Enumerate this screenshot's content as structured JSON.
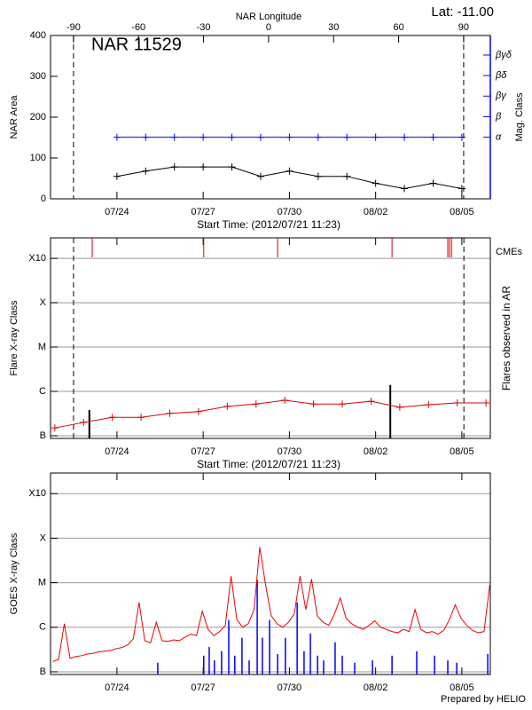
{
  "chart_data": [
    {
      "type": "line",
      "title": "NAR 11529",
      "subtitle": "Lat: -11.00",
      "x_label": "Start Time: (2012/07/21 11:23)",
      "y_label": "NAR Area",
      "y2_label": "Mag. Class",
      "x2_label": "NAR Longitude",
      "xlim": [
        0.22,
        15.52
      ],
      "xticks": [
        {
          "value": 2.53,
          "label": "07/24"
        },
        {
          "value": 5.53,
          "label": "07/27"
        },
        {
          "value": 8.53,
          "label": "07/30"
        },
        {
          "value": 11.53,
          "label": "08/02"
        },
        {
          "value": 14.53,
          "label": "08/05"
        }
      ],
      "x2lim": [
        -100.6,
        102.3
      ],
      "x2ticks": [
        -90,
        -60,
        -30,
        0,
        30,
        60,
        90
      ],
      "limb_lines": [
        -90,
        90
      ],
      "limb_axis": "x2",
      "ylim": [
        0,
        400
      ],
      "yticks": [
        0,
        100,
        200,
        300,
        400
      ],
      "y2lim": [
        0,
        7.95
      ],
      "y2ticks": [
        {
          "value": 3,
          "label": "α"
        },
        {
          "value": 4,
          "label": "β"
        },
        {
          "value": 5,
          "label": "βγ"
        },
        {
          "value": 6,
          "label": "βδ"
        },
        {
          "value": 7,
          "label": "βγδ"
        }
      ],
      "markers": "+",
      "x": [
        2.53,
        3.53,
        4.53,
        5.53,
        6.53,
        7.53,
        8.53,
        9.53,
        10.53,
        11.53,
        12.53,
        13.53,
        14.53
      ],
      "series": [
        {
          "color": "#000000",
          "values": [
            55,
            68,
            78,
            78,
            78,
            55,
            68,
            55,
            55,
            38,
            25,
            38,
            25
          ]
        },
        {
          "color": "#0000ff",
          "axis": "y2",
          "values": [
            3,
            3,
            3,
            3,
            3,
            3,
            3,
            3,
            3,
            3,
            3,
            3,
            3
          ]
        }
      ]
    },
    {
      "type": "line",
      "x_label": "Start Time: (2012/07/21 11:23)",
      "y_label": "Flare X-ray Class",
      "y2_label": "Flares observed in AR",
      "log_y": true,
      "grid": true,
      "markers": "+",
      "xlim": [
        0.22,
        15.52
      ],
      "xticks": [
        {
          "value": 2.53,
          "label": "07/24"
        },
        {
          "value": 5.53,
          "label": "07/27"
        },
        {
          "value": 8.53,
          "label": "07/30"
        },
        {
          "value": 11.53,
          "label": "08/02"
        },
        {
          "value": 14.53,
          "label": "08/05"
        }
      ],
      "ylim": [
        8.7e-08,
        0.0029
      ],
      "yticks": [
        {
          "value": 1e-07,
          "label": "B"
        },
        {
          "value": 1e-06,
          "label": "C"
        },
        {
          "value": 1e-05,
          "label": "M"
        },
        {
          "value": 0.0001,
          "label": "X"
        },
        {
          "value": 0.001,
          "label": "X10"
        }
      ],
      "limb_lines": [
        1.02,
        14.6
      ],
      "limb_axis": "x",
      "x": [
        0.37,
        1.37,
        2.37,
        3.37,
        4.37,
        5.37,
        6.37,
        7.37,
        8.37,
        9.37,
        10.37,
        11.37,
        12.37,
        13.37,
        14.37,
        15.37
      ],
      "series": [
        {
          "color": "#dd0000",
          "values": [
            1.5e-07,
            2e-07,
            2.6e-07,
            2.6e-07,
            3.2e-07,
            3.5e-07,
            4.6e-07,
            5.2e-07,
            6.3e-07,
            5.2e-07,
            5.2e-07,
            6e-07,
            4.4e-07,
            5e-07,
            5.5e-07,
            5.5e-07
          ]
        }
      ],
      "flares": {
        "color": "#000000",
        "x": [
          1.57,
          12.04
        ],
        "values": [
          3.8e-07,
          1.4e-06
        ]
      },
      "cmes": {
        "name": "CMEs",
        "color": "#dd0000",
        "x": [
          1.67,
          5.55,
          8.12,
          12.1,
          14.04,
          14.1,
          14.17
        ]
      }
    },
    {
      "type": "line",
      "y_label": "GOES X-ray Class",
      "footer": "Prepared by HELIO",
      "log_y": true,
      "grid": true,
      "xlim": [
        0.22,
        15.52
      ],
      "xticks": [
        {
          "value": 2.53,
          "label": "07/24"
        },
        {
          "value": 5.53,
          "label": "07/27"
        },
        {
          "value": 8.53,
          "label": "07/30"
        },
        {
          "value": 11.53,
          "label": "08/02"
        },
        {
          "value": 14.53,
          "label": "08/05"
        }
      ],
      "ylim": [
        8.7e-08,
        0.0029
      ],
      "yticks": [
        {
          "value": 1e-07,
          "label": "B"
        },
        {
          "value": 1e-06,
          "label": "C"
        },
        {
          "value": 1e-05,
          "label": "M"
        },
        {
          "value": 0.0001,
          "label": "X"
        },
        {
          "value": 0.001,
          "label": "X10"
        }
      ],
      "x": [
        0.3,
        0.5,
        0.7,
        0.9,
        1.1,
        1.3,
        1.5,
        1.7,
        1.9,
        2.1,
        2.3,
        2.5,
        2.7,
        2.9,
        3.1,
        3.3,
        3.5,
        3.7,
        3.9,
        4.1,
        4.3,
        4.5,
        4.7,
        4.9,
        5.1,
        5.3,
        5.5,
        5.7,
        5.9,
        6.1,
        6.3,
        6.5,
        6.7,
        6.9,
        7.1,
        7.3,
        7.5,
        7.7,
        7.9,
        8.1,
        8.3,
        8.5,
        8.7,
        8.9,
        9.1,
        9.3,
        9.5,
        9.7,
        9.9,
        10.1,
        10.3,
        10.5,
        10.7,
        10.9,
        11.1,
        11.3,
        11.5,
        11.7,
        11.9,
        12.1,
        12.3,
        12.5,
        12.7,
        12.9,
        13.1,
        13.3,
        13.5,
        13.7,
        13.9,
        14.1,
        14.3,
        14.5,
        14.7,
        14.9,
        15.1,
        15.3,
        15.5
      ],
      "series": [
        {
          "color": "#ee0000",
          "values": [
            1.7e-07,
            1.9e-07,
            1.2e-06,
            2e-07,
            2.2e-07,
            2.3e-07,
            2.5e-07,
            2.6e-07,
            2.8e-07,
            2.9e-07,
            3e-07,
            3.3e-07,
            3.5e-07,
            4e-07,
            5.5e-07,
            3.6e-06,
            5e-07,
            4.5e-07,
            1.3e-06,
            5e-07,
            4.8e-07,
            5.2e-07,
            5e-07,
            6e-07,
            7e-07,
            6.5e-07,
            2.3e-06,
            9e-07,
            6.5e-07,
            8e-07,
            1.1e-06,
            1.4e-05,
            1.5e-06,
            1e-06,
            1.2e-06,
            2.5e-06,
            6.3e-05,
            9e-06,
            1.8e-06,
            1.2e-06,
            1e-06,
            1.3e-06,
            2e-06,
            1.4e-05,
            2.5e-06,
            1.2e-05,
            1.8e-06,
            1.3e-06,
            1.1e-06,
            2e-06,
            4.5e-06,
            1.6e-06,
            1.2e-06,
            1e-06,
            9e-07,
            1.1e-06,
            1.4e-06,
            1e-06,
            9e-07,
            8e-07,
            7.5e-07,
            9e-07,
            8e-07,
            2.5e-06,
            9e-07,
            7.5e-07,
            8e-07,
            7e-07,
            8.5e-07,
            1.5e-06,
            3.2e-06,
            1.6e-06,
            1.1e-06,
            8.5e-07,
            7.5e-07,
            8e-07,
            9e-06
          ]
        }
      ],
      "bars": {
        "color": "#0000ff",
        "x": [
          3.95,
          5.55,
          5.74,
          5.92,
          6.17,
          6.42,
          6.63,
          6.88,
          7.13,
          7.41,
          7.59,
          7.84,
          8.12,
          8.39,
          8.8,
          9.04,
          9.26,
          9.51,
          9.72,
          10.12,
          10.37,
          10.8,
          11.42,
          12.1,
          12.96,
          13.58,
          14.04,
          14.35,
          15.43
        ],
        "values": [
          1.6e-07,
          2.3e-07,
          3.6e-07,
          1.8e-07,
          2.9e-07,
          1.45e-06,
          2.3e-07,
          5.8e-07,
          1.8e-07,
          1.15e-05,
          5.8e-07,
          1.45e-06,
          2.5e-07,
          5.8e-07,
          3.6e-06,
          2.9e-07,
          7.2e-07,
          2.3e-07,
          1.8e-07,
          4.6e-07,
          2.3e-07,
          1.6e-07,
          1.8e-07,
          2.3e-07,
          2.9e-07,
          2.3e-07,
          1.8e-07,
          1.6e-07,
          2.5e-07
        ]
      }
    }
  ]
}
